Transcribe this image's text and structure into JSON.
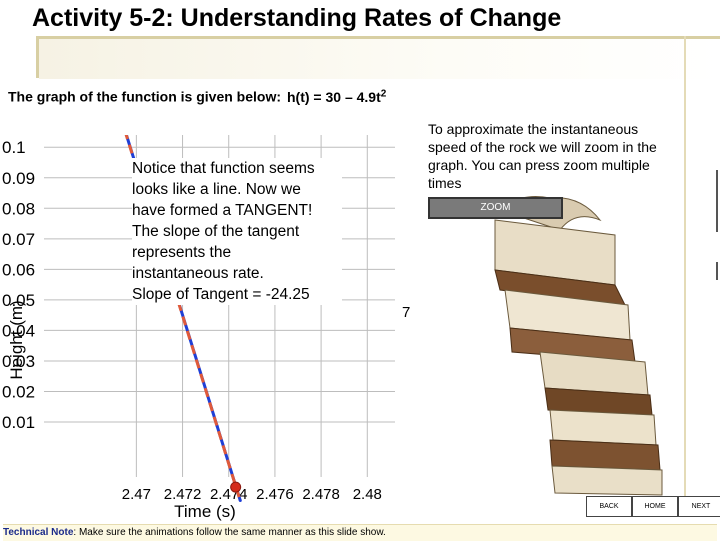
{
  "slide": {
    "title": "Activity 5-2: Understanding Rates of Change",
    "intro": "The graph of the function is given below:",
    "formula": "h(t) = 30 – 4.9t",
    "formula_exp": "2"
  },
  "notice": {
    "lines": [
      "Notice that function seems",
      "looks like a line.  Now we",
      "have formed a TANGENT!",
      "The slope of the tangent",
      "represents the",
      "instantaneous rate.",
      "Slope of Tangent = -24.25"
    ]
  },
  "instructions": {
    "lines": [
      "To approximate the instantaneous",
      "speed of the rock we will zoom in the",
      "graph.  You can press zoom multiple",
      "times"
    ],
    "zoom_label": "ZOOM"
  },
  "stray_text": "7",
  "nav": {
    "back": "BACK",
    "home": "HOME",
    "next": "NEXT"
  },
  "tech_note": {
    "label": "Technical Note",
    "text": ": Make sure the animations follow the same manner as this slide show."
  },
  "colors": {
    "curve": "#1f3fd6",
    "tangent": "#e05a3a",
    "point": "#d42a1a",
    "grid": "#bdbdbd",
    "button": "#7a7a7a"
  },
  "chart_data": {
    "type": "line",
    "title": "",
    "xlabel": "Time (s)",
    "ylabel": "Height (m)",
    "xlim": [
      2.466,
      2.4812
    ],
    "ylim": [
      -0.008,
      0.104
    ],
    "x_ticks": [
      2.47,
      2.472,
      2.474,
      2.476,
      2.478,
      2.48
    ],
    "x_tick_labels": [
      "2.47",
      "2.472",
      "2.474",
      "2.476",
      "2.478",
      "2.48"
    ],
    "y_ticks": [
      0.01,
      0.02,
      0.03,
      0.04,
      0.05,
      0.06,
      0.07,
      0.08,
      0.09,
      0.1
    ],
    "y_tick_labels": [
      "0.01",
      "0.02",
      "0.03",
      "0.04",
      "0.05",
      "0.06",
      "0.07",
      "0.08",
      "0.09",
      "0.1"
    ],
    "grid": true,
    "series": [
      {
        "values_x": [
          2.4695,
          2.4705,
          2.4715,
          2.4725,
          2.4735,
          2.4745
        ],
        "values_y": [
          0.1057,
          0.0814,
          0.0572,
          0.0329,
          0.0086,
          -0.0157
        ]
      },
      {
        "values_x": [
          2.4695,
          2.4745
        ],
        "values_y": [
          0.1055,
          -0.0158
        ]
      }
    ],
    "point": {
      "x": 2.4743,
      "y": -0.0113
    }
  }
}
